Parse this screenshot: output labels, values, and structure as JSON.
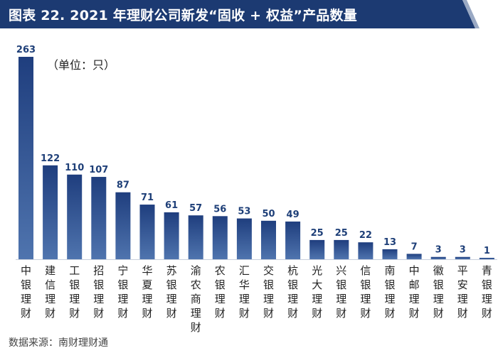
{
  "header": {
    "title": "图表 22. 2021 年理财公司新发“固收 + 权益”产品数量"
  },
  "unit_note": "（单位：只）",
  "footer": {
    "source": "数据来源：南财理财通"
  },
  "colors": {
    "title_bg": "#1c3a72",
    "bar_top": "#1f3e7e",
    "bar_bottom": "#4f74ae",
    "value_label": "#1e3f78"
  },
  "chart_data": {
    "type": "bar",
    "categories": [
      "中银理财",
      "建信理财",
      "工银理财",
      "招银理财",
      "宁银理财",
      "华夏理财",
      "苏银理财",
      "渝农商理财",
      "农银理财",
      "汇华理财",
      "交银理财",
      "杭银理财",
      "光大理财",
      "兴银理财",
      "信银理财",
      "南银理财",
      "中邮理财",
      "徽银理财",
      "平安理财",
      "青银理财"
    ],
    "values": [
      263,
      122,
      110,
      107,
      87,
      71,
      61,
      57,
      56,
      53,
      50,
      49,
      25,
      25,
      22,
      13,
      7,
      3,
      3,
      1
    ],
    "title": "",
    "xlabel": "",
    "ylabel": "",
    "ylim": [
      0,
      263
    ],
    "grid": false,
    "legend": "none"
  }
}
